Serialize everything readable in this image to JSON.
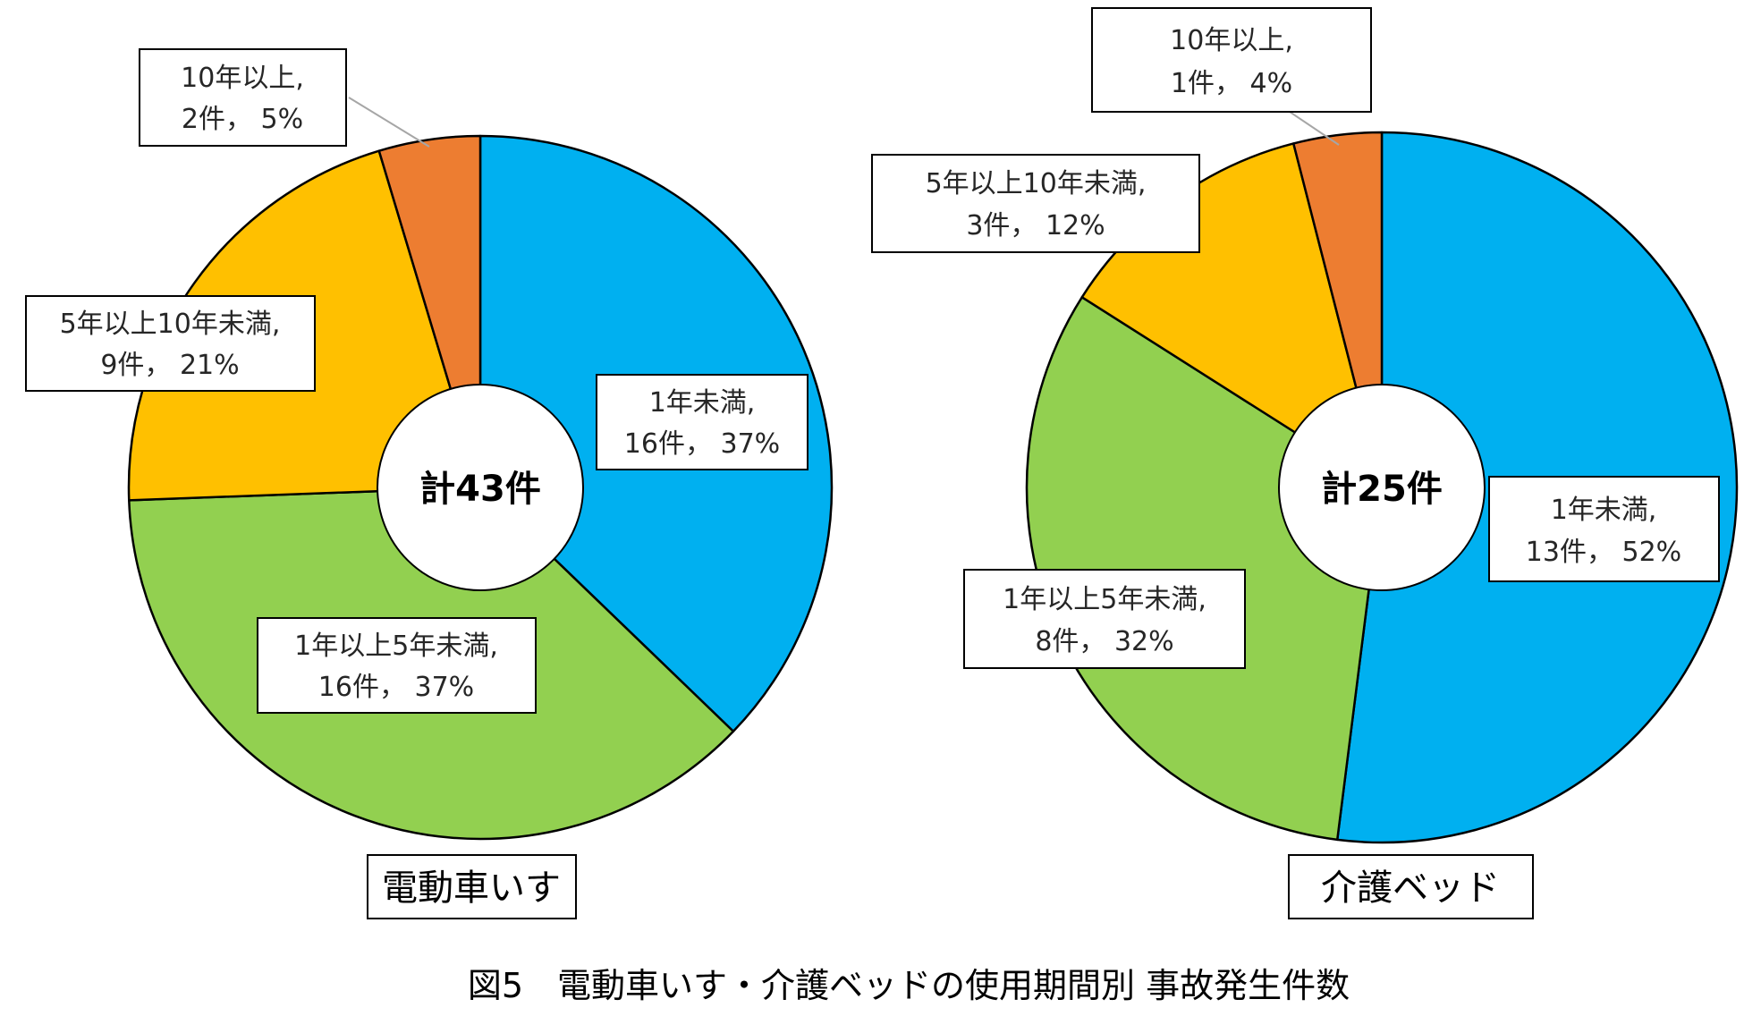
{
  "figure": {
    "caption": "図5　電動車いす・介護ベッドの使用期間別 事故発生件数"
  },
  "chart_data": [
    {
      "type": "pie",
      "name": "電動車いす",
      "center_label": "計43件",
      "total": 43,
      "categories": [
        "1年未満",
        "1年以上5年未満",
        "5年以上10年未満",
        "10年以上"
      ],
      "values": [
        16,
        16,
        9,
        2
      ],
      "percents": [
        "37%",
        "37%",
        "21%",
        "5%"
      ],
      "colors": [
        "#00B0F0",
        "#92D050",
        "#FFC000",
        "#ED7D31"
      ],
      "labels": [
        {
          "line1": "1年未満,",
          "line2": "16件， 37%"
        },
        {
          "line1": "1年以上5年未満,",
          "line2": "16件， 37%"
        },
        {
          "line1": "5年以上10年未満,",
          "line2": "9件， 21%"
        },
        {
          "line1": "10年以上,",
          "line2": "2件， 5%"
        }
      ]
    },
    {
      "type": "pie",
      "name": "介護ベッド",
      "center_label": "計25件",
      "total": 25,
      "categories": [
        "1年未満",
        "1年以上5年未満",
        "5年以上10年未満",
        "10年以上"
      ],
      "values": [
        13,
        8,
        3,
        1
      ],
      "percents": [
        "52%",
        "32%",
        "12%",
        "4%"
      ],
      "colors": [
        "#00B0F0",
        "#92D050",
        "#FFC000",
        "#ED7D31"
      ],
      "labels": [
        {
          "line1": "1年未満,",
          "line2": "13件， 52%"
        },
        {
          "line1": "1年以上5年未満,",
          "line2": "8件， 32%"
        },
        {
          "line1": "5年以上10年未満,",
          "line2": "3件， 12%"
        },
        {
          "line1": "10年以上,",
          "line2": "1件， 4%"
        }
      ]
    }
  ]
}
